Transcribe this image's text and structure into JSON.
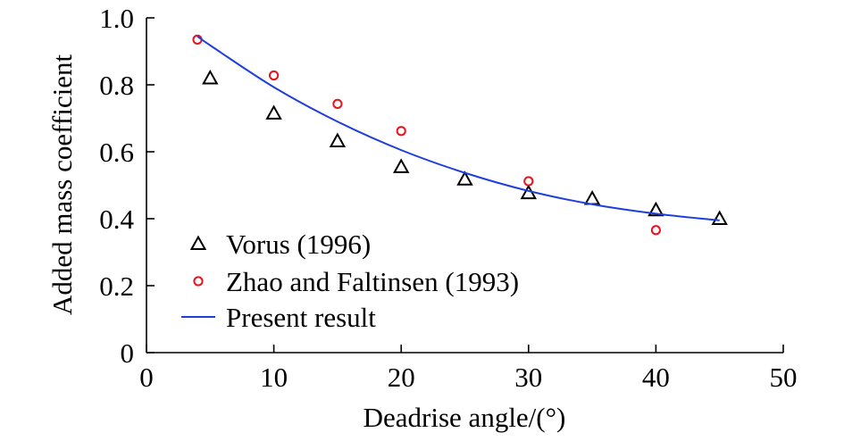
{
  "chart_data": {
    "type": "scatter",
    "title": "",
    "xlabel": "Deadrise angle/(°)",
    "ylabel": "Added mass coefficient",
    "xlim": [
      0,
      50
    ],
    "ylim": [
      0,
      1.0
    ],
    "x_ticks": [
      0,
      10,
      20,
      30,
      40,
      50
    ],
    "x_tick_labels": [
      "0",
      "10",
      "20",
      "30",
      "40",
      "50"
    ],
    "y_ticks": [
      0,
      0.2,
      0.4,
      0.6,
      0.8,
      1.0
    ],
    "y_tick_labels": [
      "0",
      "0.2",
      "0.4",
      "0.6",
      "0.8",
      "1.0"
    ],
    "grid": false,
    "legend_position": "bottom-left",
    "series": [
      {
        "name": "Vorus (1996)",
        "kind": "scatter",
        "marker": "triangle",
        "color": "#000000",
        "x": [
          5,
          10,
          15,
          20,
          25,
          30,
          35,
          40,
          45
        ],
        "y": [
          0.82,
          0.715,
          0.632,
          0.555,
          0.518,
          0.477,
          0.46,
          0.426,
          0.4
        ]
      },
      {
        "name": "Zhao and Faltinsen (1993)",
        "kind": "scatter",
        "marker": "circle",
        "color": "#e8141e",
        "x": [
          4,
          10,
          15,
          20,
          30,
          40
        ],
        "y": [
          0.935,
          0.828,
          0.743,
          0.662,
          0.512,
          0.366
        ]
      },
      {
        "name": "Present result",
        "kind": "line",
        "color": "#1f3fdc",
        "x": [
          4,
          5,
          10,
          15,
          20,
          25,
          30,
          35,
          40,
          45
        ],
        "y": [
          0.945,
          0.918,
          0.793,
          0.69,
          0.605,
          0.537,
          0.483,
          0.443,
          0.415,
          0.395
        ]
      }
    ]
  }
}
